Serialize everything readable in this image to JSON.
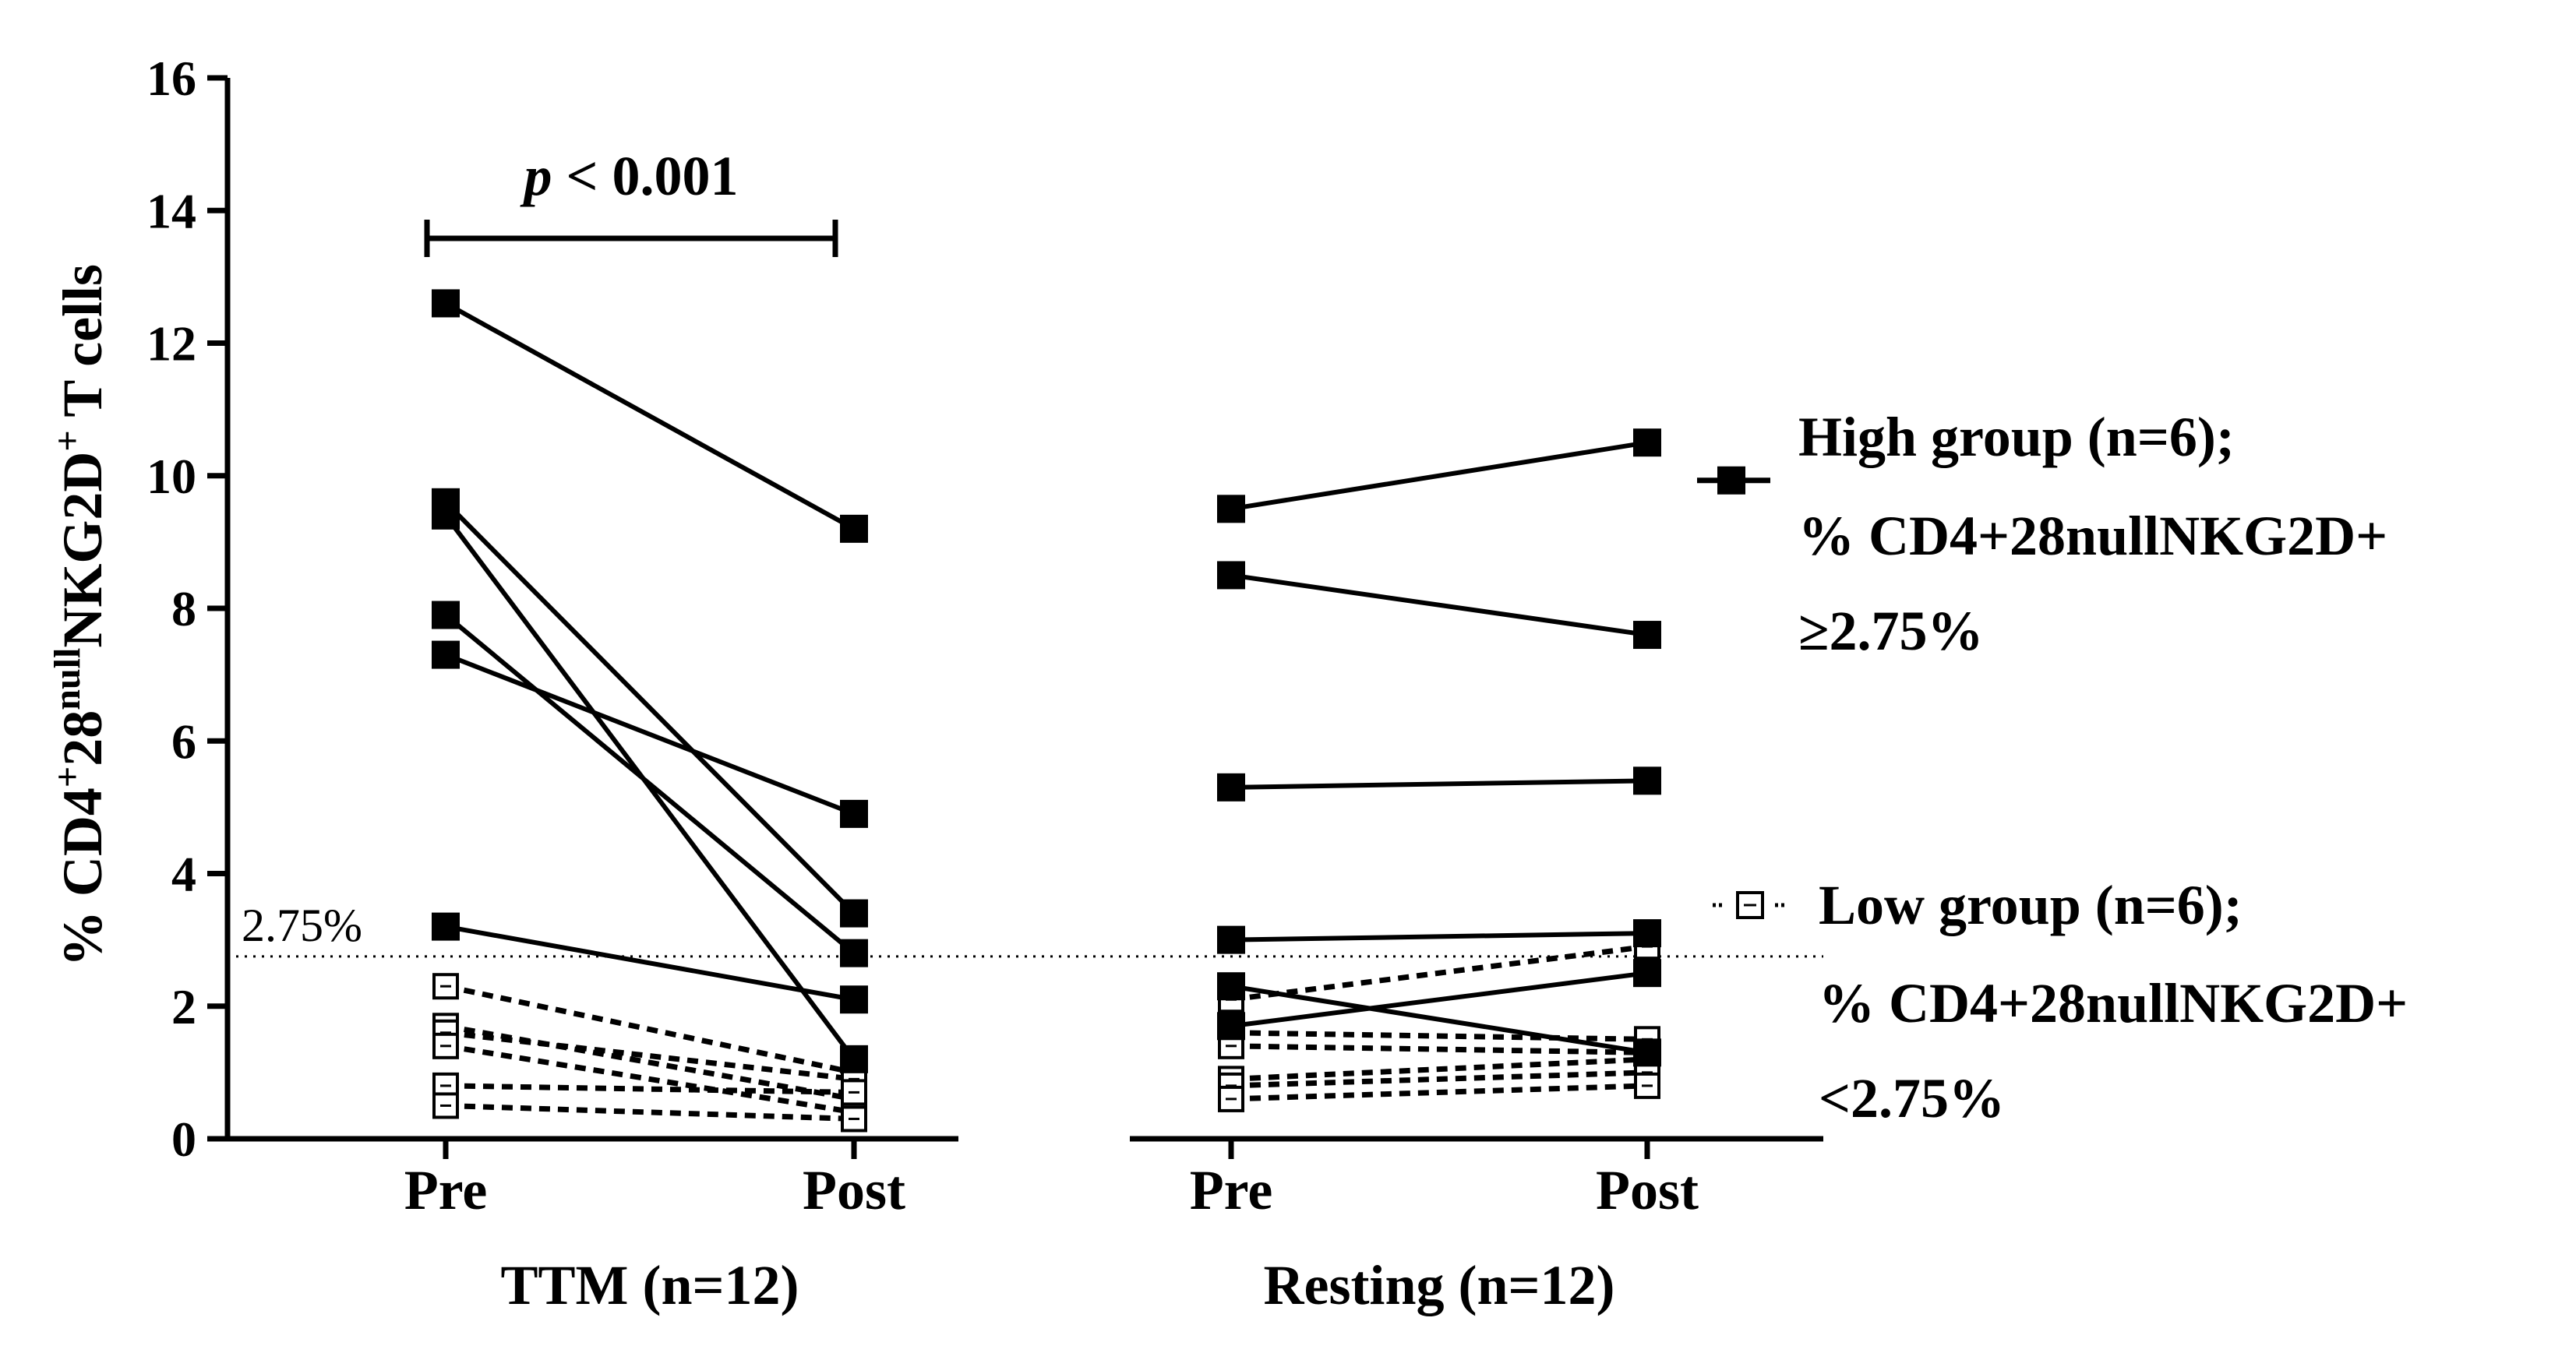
{
  "chart_data": {
    "type": "line",
    "ylabel_parts": {
      "prefix": "% CD4",
      "sup1": "+",
      "mid1": "28",
      "sup2": "null",
      "mid2": "NKG2D",
      "sup3": "+",
      "suffix": " T cells"
    },
    "ylim": [
      0,
      16
    ],
    "yticks": [
      "0",
      "2",
      "4",
      "6",
      "8",
      "10",
      "12",
      "14",
      "16"
    ],
    "groups": [
      {
        "label": "TTM (n=12)",
        "ticks": [
          "Pre",
          "Post"
        ]
      },
      {
        "label": "Resting (n=12)",
        "ticks": [
          "Pre",
          "Post"
        ]
      }
    ],
    "threshold": {
      "value": 2.75,
      "label": "2.75%"
    },
    "significance": {
      "p": "p",
      "text": " < 0.001"
    },
    "legend": [
      {
        "id": "high",
        "lines": [
          "High group (n=6);",
          "% CD4+28nullNKG2D+",
          "≥2.75%"
        ]
      },
      {
        "id": "low",
        "lines": [
          "Low group (n=6);",
          "% CD4+28nullNKG2D+",
          "<2.75%"
        ]
      }
    ],
    "series": {
      "ttm_high": [
        [
          12.6,
          9.2
        ],
        [
          9.6,
          3.4
        ],
        [
          9.4,
          1.2
        ],
        [
          7.9,
          2.8
        ],
        [
          7.3,
          4.9
        ],
        [
          3.2,
          2.1
        ]
      ],
      "ttm_low": [
        [
          2.3,
          1.0
        ],
        [
          1.7,
          0.6
        ],
        [
          1.6,
          0.9
        ],
        [
          1.4,
          0.4
        ],
        [
          0.8,
          0.7
        ],
        [
          0.5,
          0.3
        ]
      ],
      "rest_high": [
        [
          9.5,
          10.5
        ],
        [
          8.5,
          7.6
        ],
        [
          5.3,
          5.4
        ],
        [
          3.0,
          3.1
        ],
        [
          2.3,
          1.3
        ],
        [
          1.7,
          2.5
        ]
      ],
      "rest_low": [
        [
          2.1,
          2.9
        ],
        [
          1.6,
          1.5
        ],
        [
          1.4,
          1.3
        ],
        [
          0.9,
          1.2
        ],
        [
          0.8,
          1.0
        ],
        [
          0.6,
          0.8
        ]
      ]
    }
  }
}
